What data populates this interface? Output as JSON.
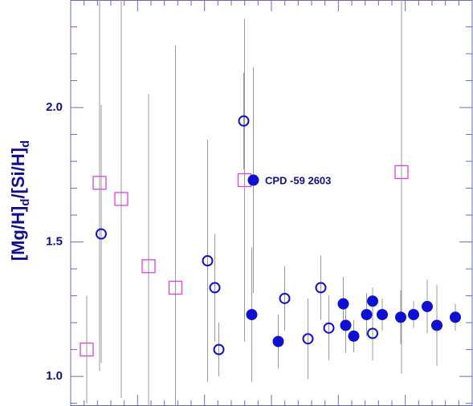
{
  "chart_data": {
    "type": "scatter",
    "ylabel": [
      "[Mg/H]",
      "d",
      "/[Si/H]",
      "d"
    ],
    "xlim": [
      0,
      100
    ],
    "ylim": [
      0.89,
      2.4
    ],
    "yticks": [
      {
        "value": 1,
        "label": "1.0"
      },
      1.5,
      {
        "value": 2,
        "label": "2.0"
      }
    ],
    "annotation": "CPD -59 2603",
    "series": [
      {
        "marker": "open-square",
        "color": "#e040e0",
        "x": [
          4.0,
          7.2,
          12.6,
          19.4,
          26.1,
          43.3,
          82.4
        ],
        "values": [
          1.1,
          1.72,
          1.66,
          1.41,
          1.33,
          1.73,
          1.76
        ],
        "errors": [
          0.2,
          0.7,
          0.74,
          0.64,
          0.9,
          0.6,
          0.75
        ]
      },
      {
        "marker": "open-circle",
        "color": "#1010d0",
        "x": [
          7.6,
          34.1,
          35.9,
          36.9,
          43.1,
          53.3,
          59.1,
          62.3,
          64.3,
          75.2
        ],
        "values": [
          1.53,
          1.43,
          1.33,
          1.1,
          1.95,
          1.29,
          1.14,
          1.33,
          1.18,
          1.16
        ],
        "errors": [
          0.48,
          0.45,
          0.2,
          0.1,
          0.18,
          0.12,
          0.15,
          0.12,
          0.12,
          0.1
        ]
      },
      {
        "marker": "filled-circle",
        "color": "#1010d0",
        "x": [
          45.5,
          45.1,
          51.7,
          67.9,
          68.5,
          70.5,
          73.7,
          75.2,
          77.6,
          82.2,
          85.4,
          88.8,
          91.2,
          95.8
        ],
        "values": [
          1.73,
          1.23,
          1.13,
          1.27,
          1.19,
          1.15,
          1.23,
          1.28,
          1.23,
          1.22,
          1.23,
          1.26,
          1.19,
          1.22
        ],
        "errors": [
          0.42,
          0.25,
          0.1,
          0.1,
          0.1,
          0.06,
          0.08,
          0.05,
          0.06,
          0.1,
          0.05,
          0.1,
          0.15,
          0.05
        ]
      }
    ]
  }
}
